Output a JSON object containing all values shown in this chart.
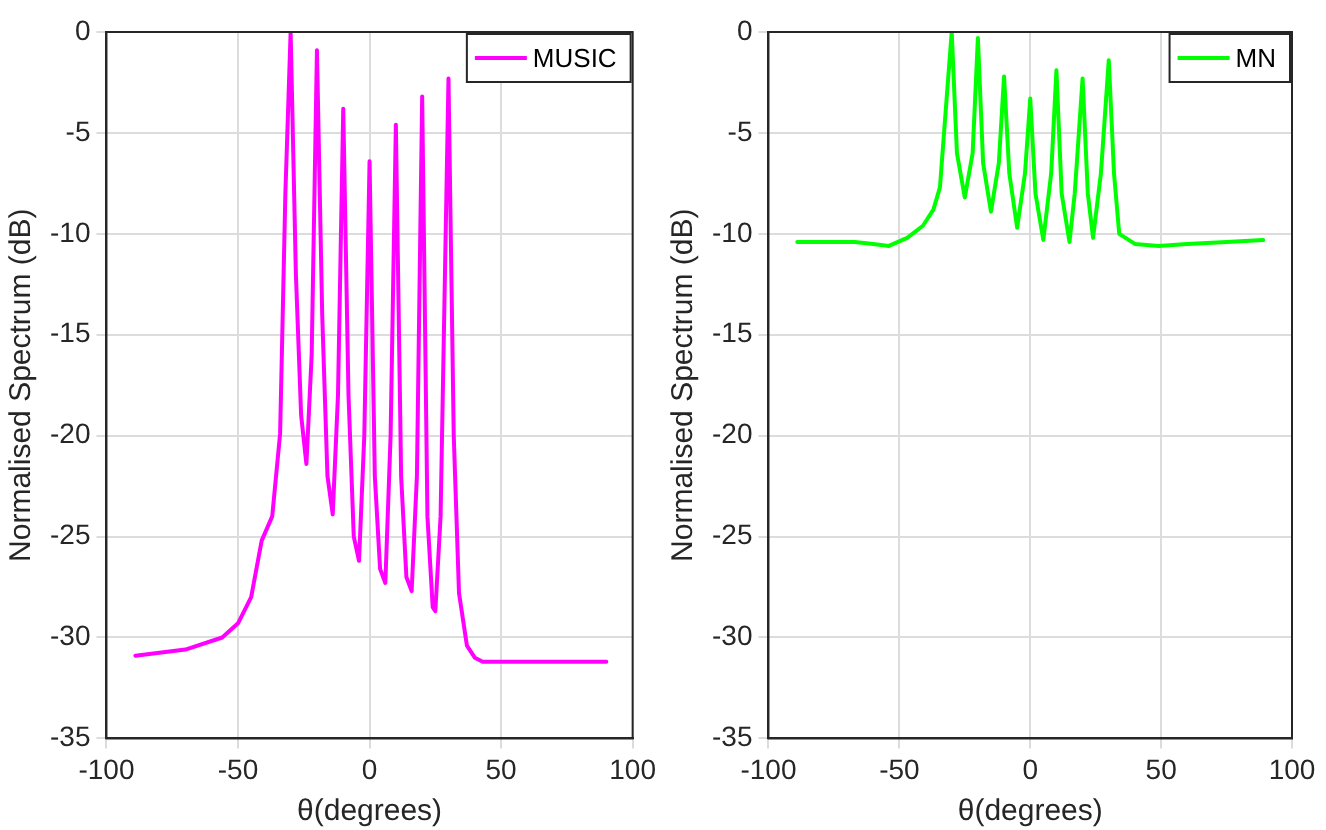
{
  "chart_data": [
    {
      "type": "line",
      "xlabel": "θ(degrees)",
      "ylabel": "Normalised Spectrum (dB)",
      "xlim": [
        -100,
        100
      ],
      "xticks": [
        -100,
        -50,
        0,
        50,
        100
      ],
      "ylim": [
        -35,
        0
      ],
      "yticks": [
        -35,
        -30,
        -25,
        -20,
        -15,
        -10,
        -5,
        0
      ],
      "grid": true,
      "legend": "top right",
      "marker": "none",
      "line_style": "solid",
      "series": [
        {
          "name": "MUSIC",
          "color": "#ff00ff",
          "x": [
            -89,
            -70,
            -56,
            -50,
            -45,
            -41,
            -37,
            -34,
            -32,
            -30,
            -28,
            -26,
            -24,
            -22,
            -20,
            -18,
            -16,
            -14,
            -12,
            -10,
            -8,
            -6,
            -4,
            -2,
            0,
            2,
            4,
            6,
            8,
            10,
            12,
            14,
            16,
            18,
            20,
            22,
            24,
            25,
            27,
            30,
            32,
            34,
            37,
            40,
            43,
            50,
            70,
            90
          ],
          "values": [
            -30.9,
            -30.6,
            -30,
            -29.3,
            -28,
            -25.2,
            -24,
            -19.9,
            -8,
            0,
            -12,
            -19,
            -21.4,
            -16,
            -0.9,
            -14,
            -22,
            -23.9,
            -18,
            -3.8,
            -18,
            -25,
            -26.2,
            -20,
            -6.4,
            -22,
            -26.6,
            -27.3,
            -20,
            -4.6,
            -22,
            -27,
            -27.7,
            -22,
            -3.2,
            -24,
            -28.5,
            -28.7,
            -24,
            -2.3,
            -20,
            -27.8,
            -30.4,
            -31,
            -31.2,
            -31.2,
            -31.2,
            -31.2
          ]
        }
      ]
    },
    {
      "type": "line",
      "xlabel": "θ(degrees)",
      "ylabel": "Normalised Spectrum (dB)",
      "xlim": [
        -100,
        100
      ],
      "xticks": [
        -100,
        -50,
        0,
        50,
        100
      ],
      "ylim": [
        -35,
        0
      ],
      "yticks": [
        -35,
        -30,
        -25,
        -20,
        -15,
        -10,
        -5,
        0
      ],
      "grid": true,
      "legend": "top right",
      "marker": "none",
      "line_style": "solid",
      "series": [
        {
          "name": "MN",
          "color": "#00ff00",
          "x": [
            -89,
            -75,
            -67,
            -60,
            -54,
            -47,
            -41,
            -37,
            -34.5,
            -32,
            -30,
            -28,
            -25,
            -22,
            -20,
            -18,
            -15,
            -12,
            -10,
            -8,
            -5,
            -2,
            0,
            2,
            5,
            8,
            10,
            12,
            15,
            17,
            20,
            22,
            24,
            27,
            30,
            32,
            34,
            40,
            49,
            60,
            75,
            89
          ],
          "values": [
            -10.4,
            -10.4,
            -10.4,
            -10.5,
            -10.6,
            -10.2,
            -9.6,
            -8.8,
            -7.7,
            -3.4,
            0,
            -6,
            -8.2,
            -6,
            -0.3,
            -6.5,
            -8.9,
            -6.5,
            -2.2,
            -7,
            -9.7,
            -7,
            -3.3,
            -8,
            -10.3,
            -7,
            -1.9,
            -8,
            -10.4,
            -8,
            -2.3,
            -8,
            -10.2,
            -7,
            -1.4,
            -7,
            -10,
            -10.5,
            -10.6,
            -10.5,
            -10.4,
            -10.3
          ]
        }
      ]
    }
  ]
}
